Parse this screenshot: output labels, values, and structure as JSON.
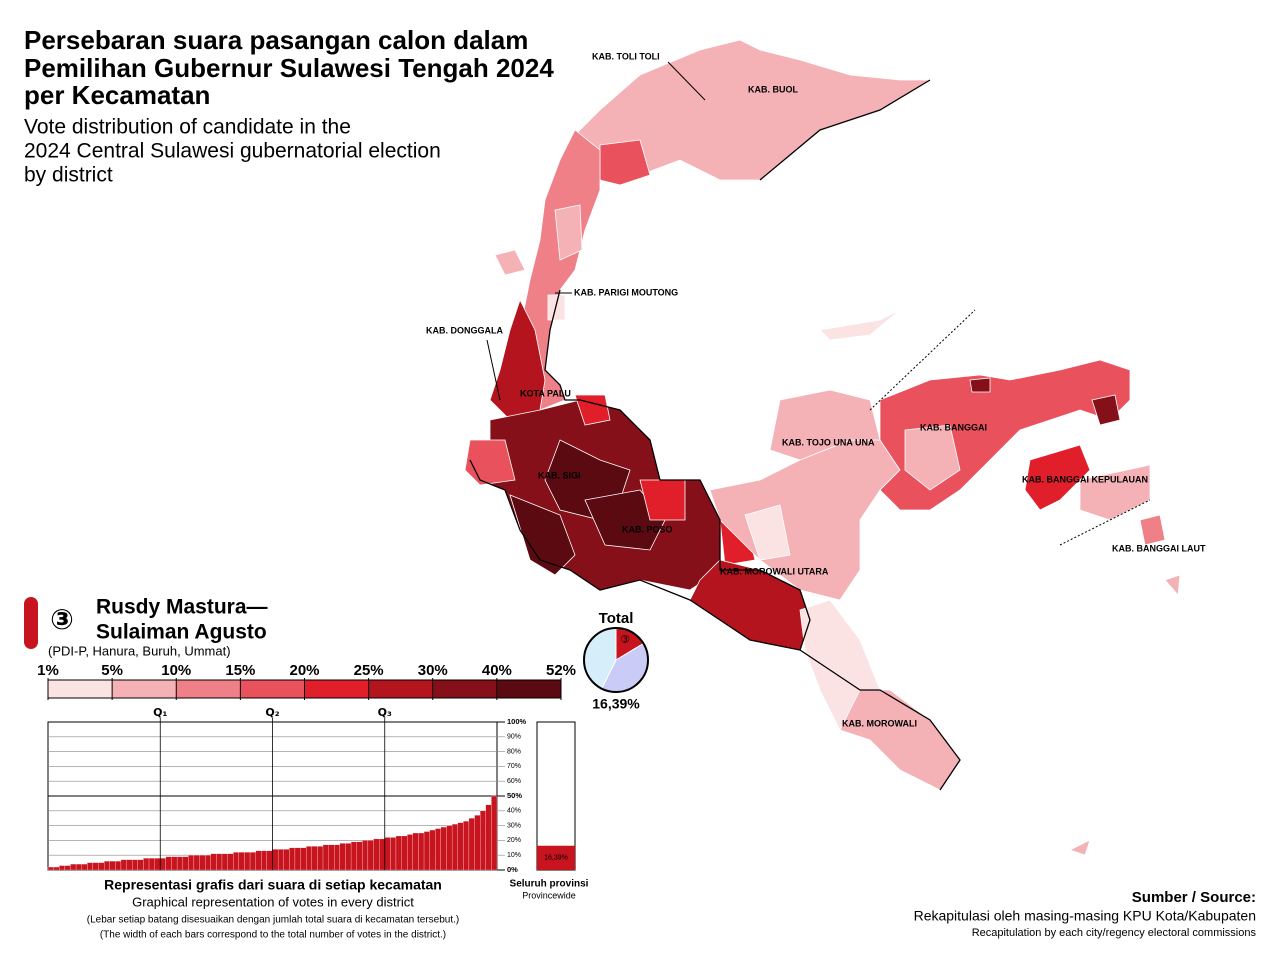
{
  "header": {
    "title_lines": [
      "Persebaran suara pasangan calon dalam",
      "Pemilihan Gubernur Sulawesi Tengah 2024",
      "per Kecamatan"
    ],
    "subtitle_lines": [
      "Vote distribution of candidate in the",
      "2024 Central Sulawesi gubernatorial election",
      "by district"
    ]
  },
  "map": {
    "labels": [
      {
        "text": "KAB. TOLI TOLI"
      },
      {
        "text": "KAB. BUOL"
      },
      {
        "text": "KAB. PARIGI MOUTONG"
      },
      {
        "text": "KAB. DONGGALA"
      },
      {
        "text": "KOTA PALU"
      },
      {
        "text": "KAB. SIGI"
      },
      {
        "text": "KAB. TOJO UNA UNA"
      },
      {
        "text": "KAB. BANGGAI"
      },
      {
        "text": "KAB. BANGGAI KEPULAUAN"
      },
      {
        "text": "KAB. POSO"
      },
      {
        "text": "KAB. MOROWALI UTARA"
      },
      {
        "text": "KAB. BANGGAI LAUT"
      },
      {
        "text": "KAB. MOROWALI"
      }
    ]
  },
  "candidate": {
    "number": "③",
    "name_lines": [
      "Rusdy Mastura—",
      "Sulaiman Agusto"
    ],
    "parties": "(PDI-P, Hanura, Buruh, Ummat)"
  },
  "legend": {
    "ticks": [
      {
        "value": 1,
        "label": "1%"
      },
      {
        "value": 5,
        "label": "5%"
      },
      {
        "value": 10,
        "label": "10%"
      },
      {
        "value": 15,
        "label": "15%"
      },
      {
        "value": 20,
        "label": "20%"
      },
      {
        "value": 25,
        "label": "25%"
      },
      {
        "value": 30,
        "label": "30%"
      },
      {
        "value": 40,
        "label": "40%"
      },
      {
        "value": 52,
        "label": "52%"
      }
    ],
    "colors": [
      "#fbe3e4",
      "#f4b1b6",
      "#ef8088",
      "#e9515d",
      "#e11f2a",
      "#b3141e",
      "#86101a",
      "#5a0a10"
    ]
  },
  "total": {
    "title": "Total",
    "slices": [
      {
        "color": "#c8141e",
        "value": 16.39,
        "label": "16,39%"
      },
      {
        "color": "#cbcbf8",
        "value": 41
      },
      {
        "color": "#d6eef9",
        "value": 42.61
      }
    ]
  },
  "chart_data": {
    "type": "bar",
    "color": "#c8141e",
    "quartiles": [
      "Q₁",
      "Q₂",
      "Q₃"
    ],
    "ylim": [
      0,
      100
    ],
    "yticks": [
      {
        "value": 0,
        "label": "0%"
      },
      {
        "value": 10,
        "label": "10%"
      },
      {
        "value": 20,
        "label": "20%"
      },
      {
        "value": 30,
        "label": "30%"
      },
      {
        "value": 40,
        "label": "40%"
      },
      {
        "value": 50,
        "label": "50%"
      },
      {
        "value": 60,
        "label": "60%"
      },
      {
        "value": 70,
        "label": "70%"
      },
      {
        "value": 80,
        "label": "80%"
      },
      {
        "value": 90,
        "label": "90%"
      },
      {
        "value": 100,
        "label": "100%"
      }
    ],
    "values": [
      2,
      2,
      3,
      3,
      4,
      4,
      4,
      5,
      5,
      5,
      6,
      6,
      6,
      7,
      7,
      7,
      7,
      8,
      8,
      8,
      8,
      9,
      9,
      9,
      9,
      10,
      10,
      10,
      10,
      11,
      11,
      11,
      11,
      12,
      12,
      12,
      12,
      13,
      13,
      13,
      14,
      14,
      14,
      15,
      15,
      15,
      16,
      16,
      16,
      17,
      17,
      17,
      18,
      18,
      19,
      19,
      20,
      20,
      21,
      21,
      22,
      22,
      23,
      23,
      24,
      25,
      25,
      26,
      27,
      28,
      29,
      30,
      31,
      32,
      33,
      35,
      37,
      40,
      44,
      50
    ],
    "province": {
      "value": 16.39,
      "label": "16,39%",
      "title": "Seluruh provinsi",
      "subtitle": "Provincewide"
    },
    "caption_lines": [
      "Representasi grafis dari suara di setiap kecamatan",
      "Graphical representation of votes in every district",
      "(Lebar setiap batang disesuaikan dengan jumlah total suara di kecamatan tersebut.)",
      "(The width of each bars correspond to the total number of votes in the district.)"
    ]
  },
  "source": {
    "title": "Sumber / Source:",
    "line1": "Rekapitulasi oleh masing-masing KPU Kota/Kabupaten",
    "line2": "Recapitulation by each city/regency electoral commissions"
  }
}
